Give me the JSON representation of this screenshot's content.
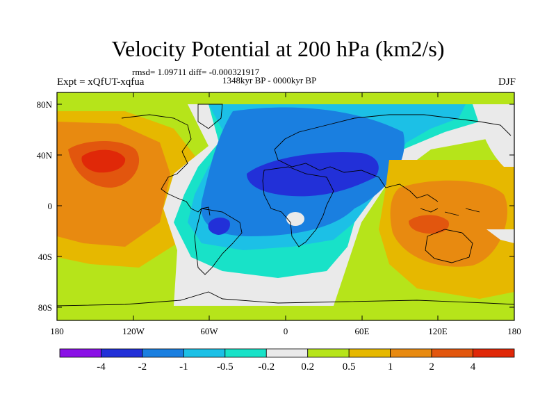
{
  "title": "Velocity Potential at 200 hPa (km2/s)",
  "stats_line": "rmsd= 1.09711 diff= -0.000321917",
  "period_line": "1348kyr BP - 0000kyr BP",
  "experiment_label": "Expt = xQfUT-xqfua",
  "season_label": "DJF",
  "lat_ticks": [
    "80N",
    "40N",
    "0",
    "40S",
    "80S"
  ],
  "lon_ticks": [
    "180",
    "120W",
    "60W",
    "0",
    "60E",
    "120E",
    "180"
  ],
  "colorbar": {
    "colors": [
      "#8a10e6",
      "#2230d8",
      "#1a7fe0",
      "#1cc0e6",
      "#18e2c8",
      "#eaeaea",
      "#b6e41a",
      "#e6b800",
      "#e88a10",
      "#e2560e",
      "#e02808"
    ],
    "labels": [
      "-4",
      "-2",
      "-1",
      "-0.5",
      "-0.2",
      "0.2",
      "0.5",
      "1",
      "2",
      "4"
    ]
  }
}
